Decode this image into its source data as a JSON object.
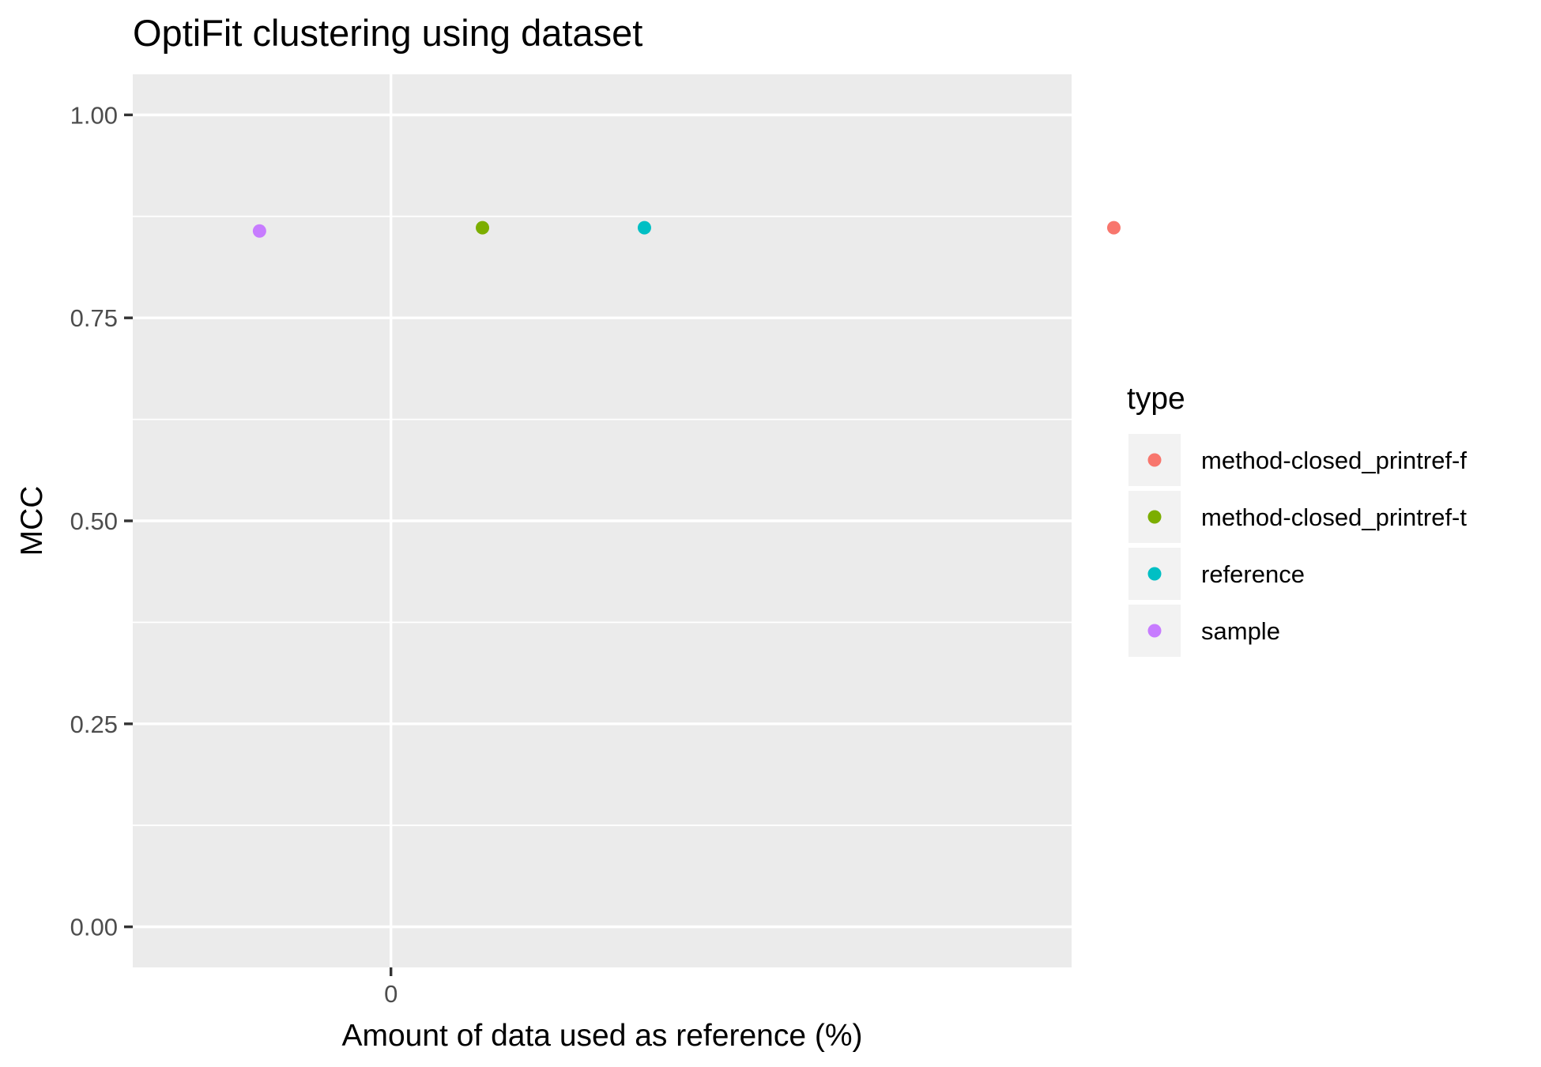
{
  "chart_data": {
    "type": "scatter",
    "title": "OptiFit clustering using  dataset",
    "xlabel": "Amount of data used as reference (%)",
    "ylabel": "MCC",
    "xlim": [
      -0.055,
      0.145
    ],
    "ylim": [
      -0.05,
      1.05
    ],
    "x_ticks": [
      0
    ],
    "x_tick_labels": [
      "0"
    ],
    "y_ticks": [
      0,
      0.25,
      0.5,
      0.75,
      1.0
    ],
    "y_tick_labels": [
      "0.00",
      "0.25",
      "0.50",
      "0.75",
      "1.00"
    ],
    "grid": true,
    "legend": {
      "title": "type",
      "position": "right",
      "entries": [
        {
          "label": "method-closed_printref-f",
          "color": "#F8766D"
        },
        {
          "label": "method-closed_printref-t",
          "color": "#7CAE00"
        },
        {
          "label": "reference",
          "color": "#00BFC4"
        },
        {
          "label": "sample",
          "color": "#C77CFF"
        }
      ]
    },
    "series": [
      {
        "name": "method-closed_printref-f",
        "color": "#F8766D",
        "points": [
          {
            "x": 0.154,
            "y": 0.861
          }
        ]
      },
      {
        "name": "method-closed_printref-t",
        "color": "#7CAE00",
        "points": [
          {
            "x": 0.0195,
            "y": 0.861
          }
        ]
      },
      {
        "name": "reference",
        "color": "#00BFC4",
        "points": [
          {
            "x": 0.054,
            "y": 0.861
          }
        ]
      },
      {
        "name": "sample",
        "color": "#C77CFF",
        "points": [
          {
            "x": -0.028,
            "y": 0.857
          }
        ]
      }
    ]
  }
}
